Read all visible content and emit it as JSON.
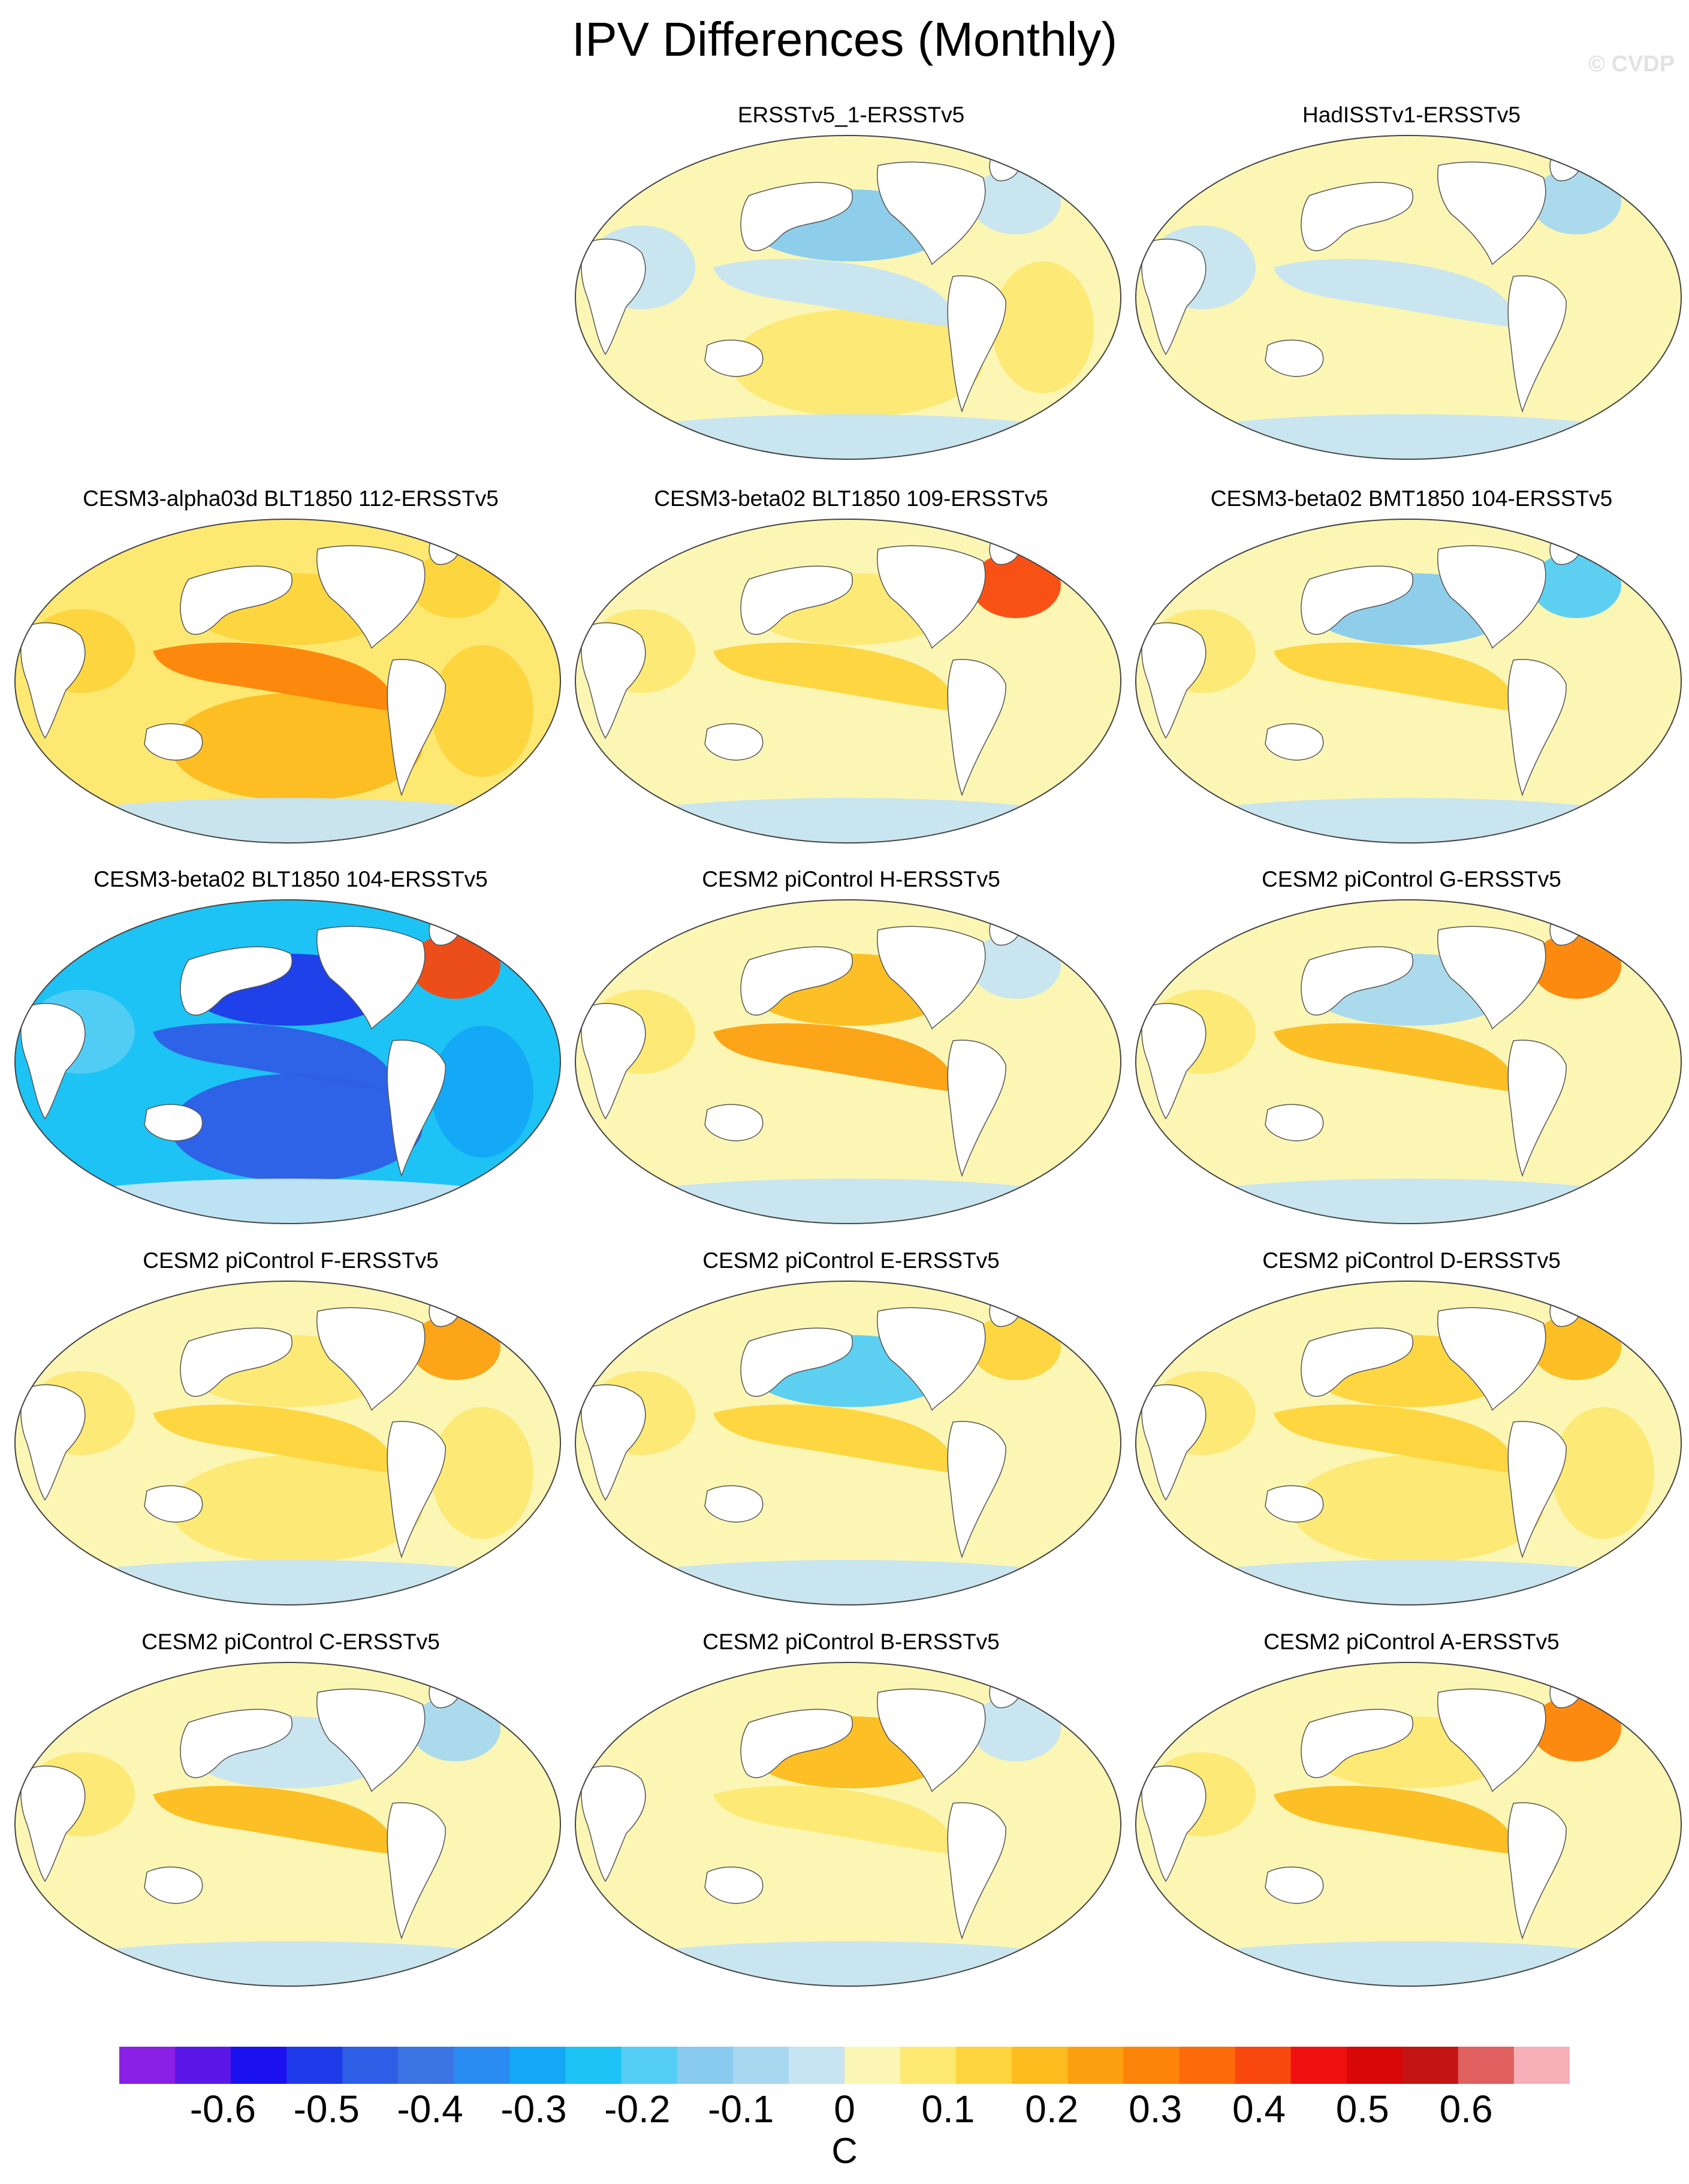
{
  "title": "IPV Differences (Monthly)",
  "watermark": "© CVDP",
  "chart_data": {
    "type": "heatmap",
    "title": "IPV Differences (Monthly)",
    "projection": "global map, Pacific-centered",
    "units": "C",
    "panels": [
      {
        "title": "ERSSTv5_1-ERSSTv5",
        "row": 0,
        "col": 1,
        "tropical_pacific_anomaly": -0.05,
        "north_pacific_anomaly": -0.15,
        "south_pacific_anomaly": 0.1,
        "north_atlantic_anomaly": -0.05
      },
      {
        "title": "HadISSTv1-ERSSTv5",
        "row": 0,
        "col": 2,
        "tropical_pacific_anomaly": -0.05,
        "north_pacific_anomaly": 0.05,
        "south_pacific_anomaly": 0.05,
        "north_atlantic_anomaly": -0.1
      },
      {
        "title": "CESM3-alpha03d BLT1850 112-ERSSTv5",
        "row": 1,
        "col": 0,
        "tropical_pacific_anomaly": 0.3,
        "north_pacific_anomaly": 0.15,
        "south_pacific_anomaly": 0.2,
        "north_atlantic_anomaly": 0.15
      },
      {
        "title": "CESM3-beta02 BLT1850 109-ERSSTv5",
        "row": 1,
        "col": 1,
        "tropical_pacific_anomaly": 0.15,
        "north_pacific_anomaly": 0.1,
        "south_pacific_anomaly": 0.05,
        "north_atlantic_anomaly": 0.4
      },
      {
        "title": "CESM3-beta02 BMT1850 104-ERSSTv5",
        "row": 1,
        "col": 2,
        "tropical_pacific_anomaly": 0.15,
        "north_pacific_anomaly": -0.15,
        "south_pacific_anomaly": 0.05,
        "north_atlantic_anomaly": -0.2
      },
      {
        "title": "CESM3-beta02 BLT1850 104-ERSSTv5",
        "row": 2,
        "col": 0,
        "tropical_pacific_anomaly": -0.45,
        "north_pacific_anomaly": -0.5,
        "south_pacific_anomaly": -0.45,
        "north_atlantic_anomaly": 0.4
      },
      {
        "title": "CESM2 piControl H-ERSSTv5",
        "row": 2,
        "col": 1,
        "tropical_pacific_anomaly": 0.25,
        "north_pacific_anomaly": 0.2,
        "south_pacific_anomaly": 0.05,
        "north_atlantic_anomaly": -0.05
      },
      {
        "title": "CESM2 piControl G-ERSSTv5",
        "row": 2,
        "col": 2,
        "tropical_pacific_anomaly": 0.2,
        "north_pacific_anomaly": -0.1,
        "south_pacific_anomaly": 0.05,
        "north_atlantic_anomaly": 0.3
      },
      {
        "title": "CESM2 piControl F-ERSSTv5",
        "row": 3,
        "col": 0,
        "tropical_pacific_anomaly": 0.15,
        "north_pacific_anomaly": 0.1,
        "south_pacific_anomaly": 0.1,
        "north_atlantic_anomaly": 0.25
      },
      {
        "title": "CESM2 piControl E-ERSSTv5",
        "row": 3,
        "col": 1,
        "tropical_pacific_anomaly": 0.15,
        "north_pacific_anomaly": -0.2,
        "south_pacific_anomaly": 0.05,
        "north_atlantic_anomaly": 0.15
      },
      {
        "title": "CESM2 piControl D-ERSSTv5",
        "row": 3,
        "col": 2,
        "tropical_pacific_anomaly": 0.15,
        "north_pacific_anomaly": 0.15,
        "south_pacific_anomaly": 0.1,
        "north_atlantic_anomaly": 0.2
      },
      {
        "title": "CESM2 piControl C-ERSSTv5",
        "row": 4,
        "col": 0,
        "tropical_pacific_anomaly": 0.2,
        "north_pacific_anomaly": -0.05,
        "south_pacific_anomaly": 0.05,
        "north_atlantic_anomaly": -0.1
      },
      {
        "title": "CESM2 piControl B-ERSSTv5",
        "row": 4,
        "col": 1,
        "tropical_pacific_anomaly": 0.1,
        "north_pacific_anomaly": 0.2,
        "south_pacific_anomaly": 0.05,
        "north_atlantic_anomaly": -0.05
      },
      {
        "title": "CESM2 piControl A-ERSSTv5",
        "row": 4,
        "col": 2,
        "tropical_pacific_anomaly": 0.2,
        "north_pacific_anomaly": 0.1,
        "south_pacific_anomaly": 0.05,
        "north_atlantic_anomaly": 0.3
      }
    ],
    "colorbar": {
      "label": "C",
      "ticks": [
        -0.6,
        -0.5,
        -0.4,
        -0.3,
        -0.2,
        -0.1,
        0,
        0.1,
        0.2,
        0.3,
        0.4,
        0.5,
        0.6
      ],
      "tick_labels": [
        "-0.6",
        "-0.5",
        "-0.4",
        "-0.3",
        "-0.2",
        "-0.1",
        "0",
        "0.1",
        "0.2",
        "0.3",
        "0.4",
        "0.5",
        "0.6"
      ],
      "range": [
        -0.7,
        0.7
      ],
      "colors": [
        "#8a1fe6",
        "#5a17e8",
        "#1a10f0",
        "#1f3ae8",
        "#2f5ee6",
        "#3b74e3",
        "#2a8cf2",
        "#14a8f6",
        "#1dc3f4",
        "#54cdf4",
        "#88cbee",
        "#a8d8f0",
        "#c6e4f2",
        "#fbf6b4",
        "#fde872",
        "#fdd43c",
        "#fcbc1e",
        "#fca010",
        "#fc8408",
        "#fc6a0a",
        "#f8480e",
        "#f01010",
        "#d80808",
        "#c41414",
        "#e06060",
        "#f8b0b8"
      ]
    }
  }
}
